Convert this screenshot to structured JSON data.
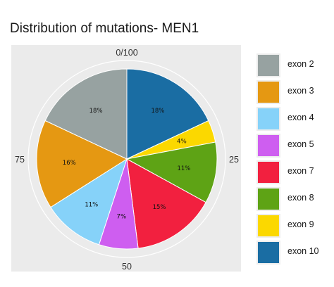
{
  "title": "Distribution of mutations- MEN1",
  "chart_data": {
    "type": "pie",
    "title": "Distribution of mutations- MEN1",
    "slices": [
      {
        "label": "exon 10",
        "value": 18,
        "display": "18%",
        "color": "#1a6da3"
      },
      {
        "label": "exon 9",
        "value": 4,
        "display": "4%",
        "color": "#fbd800"
      },
      {
        "label": "exon 8",
        "value": 11,
        "display": "11%",
        "color": "#5ea315"
      },
      {
        "label": "exon 7",
        "value": 15,
        "display": "15%",
        "color": "#f2203f"
      },
      {
        "label": "exon 5",
        "value": 7,
        "display": "7%",
        "color": "#ce5ef0"
      },
      {
        "label": "exon 4",
        "value": 11,
        "display": "11%",
        "color": "#86d2f9"
      },
      {
        "label": "exon 3",
        "value": 16,
        "display": "16%",
        "color": "#e59812"
      },
      {
        "label": "exon 2",
        "value": 18,
        "display": "18%",
        "color": "#97a2a1"
      }
    ],
    "axis_ticks": [
      {
        "label": "0/100",
        "value": 0
      },
      {
        "label": "25",
        "value": 25
      },
      {
        "label": "50",
        "value": 50
      },
      {
        "label": "75",
        "value": 75
      }
    ],
    "legend": {
      "position": "right",
      "entries": [
        {
          "label": "exon 2",
          "color": "#97a2a1"
        },
        {
          "label": "exon 3",
          "color": "#e59812"
        },
        {
          "label": "exon 4",
          "color": "#86d2f9"
        },
        {
          "label": "exon 5",
          "color": "#ce5ef0"
        },
        {
          "label": "exon 7",
          "color": "#f2203f"
        },
        {
          "label": "exon 8",
          "color": "#5ea315"
        },
        {
          "label": "exon 9",
          "color": "#fbd800"
        },
        {
          "label": "exon 10",
          "color": "#1a6da3"
        }
      ]
    }
  }
}
